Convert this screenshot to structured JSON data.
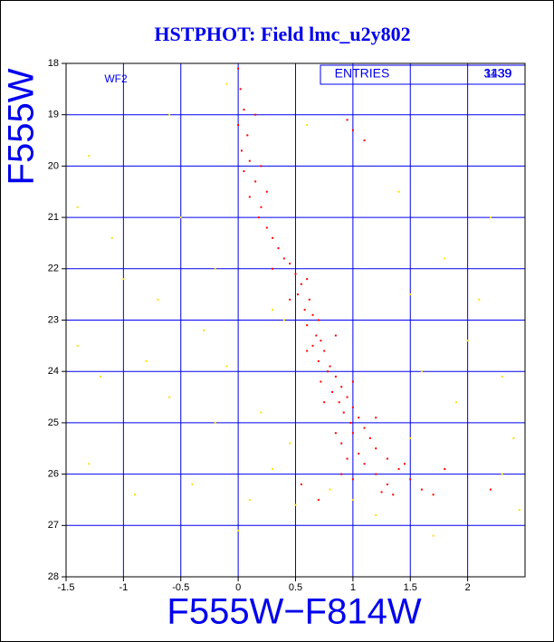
{
  "chart_data": {
    "type": "scatter",
    "title": "HSTPHOT: Field lmc_u2y802",
    "x_label": "F555W−F814W",
    "y_label": "F555W",
    "annotation": "WF2",
    "entries_label": "ENTRIES",
    "entries_values": [
      "3439",
      "1139"
    ],
    "xlim": [
      -1.5,
      2.5
    ],
    "ylim": [
      28,
      18
    ],
    "xticks": [
      -1.5,
      -1,
      -0.5,
      0,
      0.5,
      1,
      1.5,
      2
    ],
    "yticks": [
      18,
      19,
      20,
      21,
      22,
      23,
      24,
      25,
      26,
      27,
      28
    ],
    "grid": true,
    "series": [
      {
        "color": "#ffe000",
        "x": [
          -1.3,
          -0.5,
          -1.0,
          -1.4,
          -1.2,
          -0.8,
          -0.3,
          -0.6,
          -0.2,
          -1.3,
          -0.9,
          -0.4,
          0.1,
          0.3,
          0.45,
          0.2,
          -0.1,
          0.4,
          1.5,
          2.0,
          2.3,
          1.8,
          2.2,
          1.4,
          0.6,
          -0.6,
          -0.1,
          2.4,
          2.3,
          1.9,
          1.6,
          2.1,
          -1.1,
          -0.7,
          0.5,
          1.0,
          1.5,
          1.2,
          0.8,
          -1.4,
          2.45,
          1.7,
          0.0,
          -0.2,
          0.3
        ],
        "values": [
          19.8,
          21.0,
          22.2,
          23.5,
          24.1,
          23.8,
          23.2,
          24.5,
          25.0,
          25.8,
          26.4,
          26.2,
          26.5,
          25.9,
          25.4,
          24.8,
          23.9,
          23.0,
          22.5,
          23.4,
          24.1,
          21.8,
          21.0,
          20.5,
          19.2,
          19.0,
          18.4,
          25.3,
          26.0,
          24.6,
          24.0,
          22.6,
          21.4,
          22.6,
          26.6,
          26.5,
          25.3,
          26.8,
          26.3,
          20.8,
          26.7,
          27.2,
          27.1,
          22.0,
          22.8
        ]
      },
      {
        "color": "#ff0000",
        "x": [
          0.0,
          0.02,
          0.05,
          0.0,
          0.08,
          0.03,
          0.1,
          0.05,
          0.15,
          0.1,
          0.2,
          0.18,
          0.25,
          0.3,
          0.35,
          0.4,
          0.45,
          0.5,
          0.55,
          0.6,
          0.52,
          0.62,
          0.58,
          0.65,
          0.7,
          0.6,
          0.68,
          0.72,
          0.65,
          0.75,
          0.7,
          0.8,
          0.78,
          0.85,
          0.72,
          0.9,
          0.82,
          0.95,
          0.88,
          1.0,
          0.92,
          1.05,
          0.98,
          1.1,
          1.0,
          1.15,
          0.9,
          1.2,
          1.05,
          1.3,
          1.1,
          1.4,
          1.2,
          1.5,
          1.3,
          1.6,
          1.0,
          1.35,
          0.9,
          1.7,
          1.25,
          0.95,
          1.45,
          0.85,
          1.2,
          0.75,
          1.0,
          0.6,
          0.85,
          0.45,
          0.3,
          0.95,
          1.0,
          1.1,
          0.15,
          0.2,
          0.25,
          1.8,
          2.2,
          0.55,
          0.7
        ],
        "values": [
          18.1,
          18.5,
          18.9,
          19.2,
          19.4,
          19.7,
          19.9,
          20.1,
          20.3,
          20.6,
          20.8,
          21.0,
          21.2,
          21.4,
          21.6,
          21.8,
          21.9,
          22.1,
          22.3,
          22.2,
          22.5,
          22.6,
          22.8,
          22.9,
          23.0,
          23.1,
          23.3,
          23.4,
          23.5,
          23.6,
          23.8,
          23.9,
          24.0,
          24.1,
          24.2,
          24.3,
          24.4,
          24.5,
          24.6,
          24.7,
          24.8,
          24.9,
          25.0,
          25.1,
          25.2,
          25.3,
          25.4,
          25.5,
          25.6,
          25.7,
          25.8,
          25.9,
          26.0,
          26.1,
          26.2,
          26.3,
          26.1,
          26.4,
          26.0,
          26.4,
          26.35,
          25.7,
          25.8,
          25.2,
          24.9,
          24.6,
          24.2,
          23.6,
          23.3,
          22.6,
          22.0,
          19.1,
          19.3,
          19.5,
          19.0,
          20.0,
          20.5,
          25.9,
          26.3,
          26.2,
          26.5
        ]
      }
    ]
  }
}
